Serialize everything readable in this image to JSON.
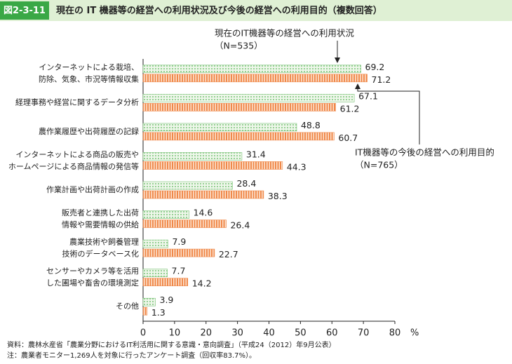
{
  "chart_data": {
    "type": "hbar",
    "figure_label": "図2-3-11",
    "title": "現在の IT 機器等の経営への利用状況及び今後の経営への利用目的（複数回答）",
    "categories": [
      [
        "インターネットによる栽培、",
        "防除、気象、市況等情報収集"
      ],
      [
        "経理事務や経営に関するデータ分析"
      ],
      [
        "農作業履歴や出荷履歴の記録"
      ],
      [
        "インターネットによる商品の販売や",
        "ホームページによる商品情報の発信等"
      ],
      [
        "作業計画や出荷計画の作成"
      ],
      [
        "販売者と連携した出荷",
        "情報や需要情報の供給"
      ],
      [
        "農業技術や飼養管理",
        "技術のデータベース化"
      ],
      [
        "センサーやカメラ等を活用",
        "した圃場や畜舎の環境測定"
      ],
      [
        "その他"
      ]
    ],
    "series": [
      {
        "name": "現在のIT機器等の経営への利用状況",
        "sample": "（N=535）",
        "color": "#7cc47a",
        "pattern": "dots",
        "values": [
          69.2,
          67.1,
          48.8,
          31.4,
          28.4,
          14.6,
          7.9,
          7.7,
          3.9
        ]
      },
      {
        "name": "IT機器等の今後の経営への利用目的",
        "sample": "（N=765）",
        "color": "#f0894a",
        "pattern": "stripes",
        "values": [
          71.2,
          61.2,
          60.7,
          44.3,
          38.3,
          26.4,
          22.7,
          14.2,
          1.3
        ]
      }
    ],
    "xlim": [
      0,
      80
    ],
    "xticks": [
      0,
      10,
      20,
      30,
      40,
      50,
      60,
      70,
      80
    ],
    "x_unit": "%",
    "source": "資料：農林水産省「農業分野におけるIT利活用に関する意識・意向調査」（平成24（2012）年9月公表）",
    "note": "注：農業者モニター1,269人を対象に行ったアンケート調査（回収率83.7%）。"
  }
}
